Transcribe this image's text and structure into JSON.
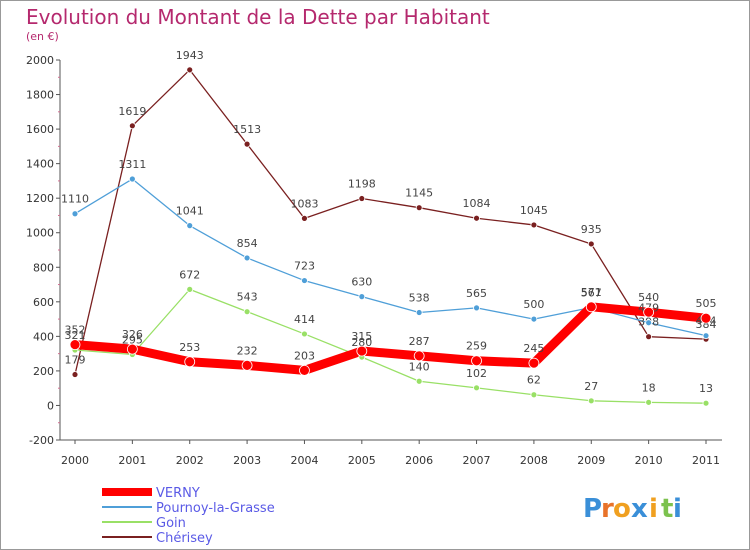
{
  "chart_data": {
    "type": "line",
    "title": "Evolution du Montant de la Dette par Habitant",
    "subtitle": "(en €)",
    "x": [
      "2000",
      "2001",
      "2002",
      "2003",
      "2004",
      "2005",
      "2006",
      "2007",
      "2008",
      "2009",
      "2010",
      "2011"
    ],
    "ylim": [
      -200,
      2000
    ],
    "yticks": [
      -200,
      0,
      200,
      400,
      600,
      800,
      1000,
      1200,
      1400,
      1600,
      1800,
      2000
    ],
    "grid": false,
    "legend_position": "bottom-left",
    "series": [
      {
        "name": "VERNY",
        "color": "#ff0000",
        "values": [
          352,
          326,
          253,
          232,
          203,
          315,
          287,
          259,
          245,
          571,
          540,
          505
        ],
        "labels": [
          "352",
          "326",
          "253",
          "232",
          "203",
          "315",
          "287",
          "259",
          "245",
          "571",
          "540",
          "505"
        ]
      },
      {
        "name": "Pournoy-la-Grasse",
        "color": "#4f9fd8",
        "values": [
          1110,
          1311,
          1041,
          854,
          723,
          630,
          538,
          565,
          500,
          567,
          479,
          404
        ],
        "labels": [
          "1110",
          "1311",
          "1041",
          "854",
          "723",
          "630",
          "538",
          "565",
          "500",
          "567",
          "479",
          "404"
        ]
      },
      {
        "name": "Goin",
        "color": "#99e066",
        "values": [
          321,
          295,
          672,
          543,
          414,
          280,
          140,
          102,
          62,
          27,
          18,
          13
        ],
        "labels": [
          "321",
          "295",
          "672",
          "543",
          "414",
          "280",
          "140",
          "102",
          "62",
          "27",
          "18",
          "13"
        ]
      },
      {
        "name": "Chérisey",
        "color": "#7a2020",
        "values": [
          179,
          1619,
          1943,
          1513,
          1083,
          1198,
          1145,
          1084,
          1045,
          935,
          398,
          384
        ],
        "labels": [
          "179",
          "1619",
          "1943",
          "1513",
          "1083",
          "1198",
          "1145",
          "1084",
          "1045",
          "935",
          "398",
          "384"
        ]
      }
    ]
  },
  "brand": {
    "letters": [
      "P",
      "r",
      "o",
      "x",
      "i",
      "t",
      "i"
    ],
    "colors": [
      "#3a8fd8",
      "#e8732a",
      "#f0a020",
      "#3a8fd8",
      "#f0a020",
      "#7cc24e",
      "#3a8fd8"
    ]
  }
}
